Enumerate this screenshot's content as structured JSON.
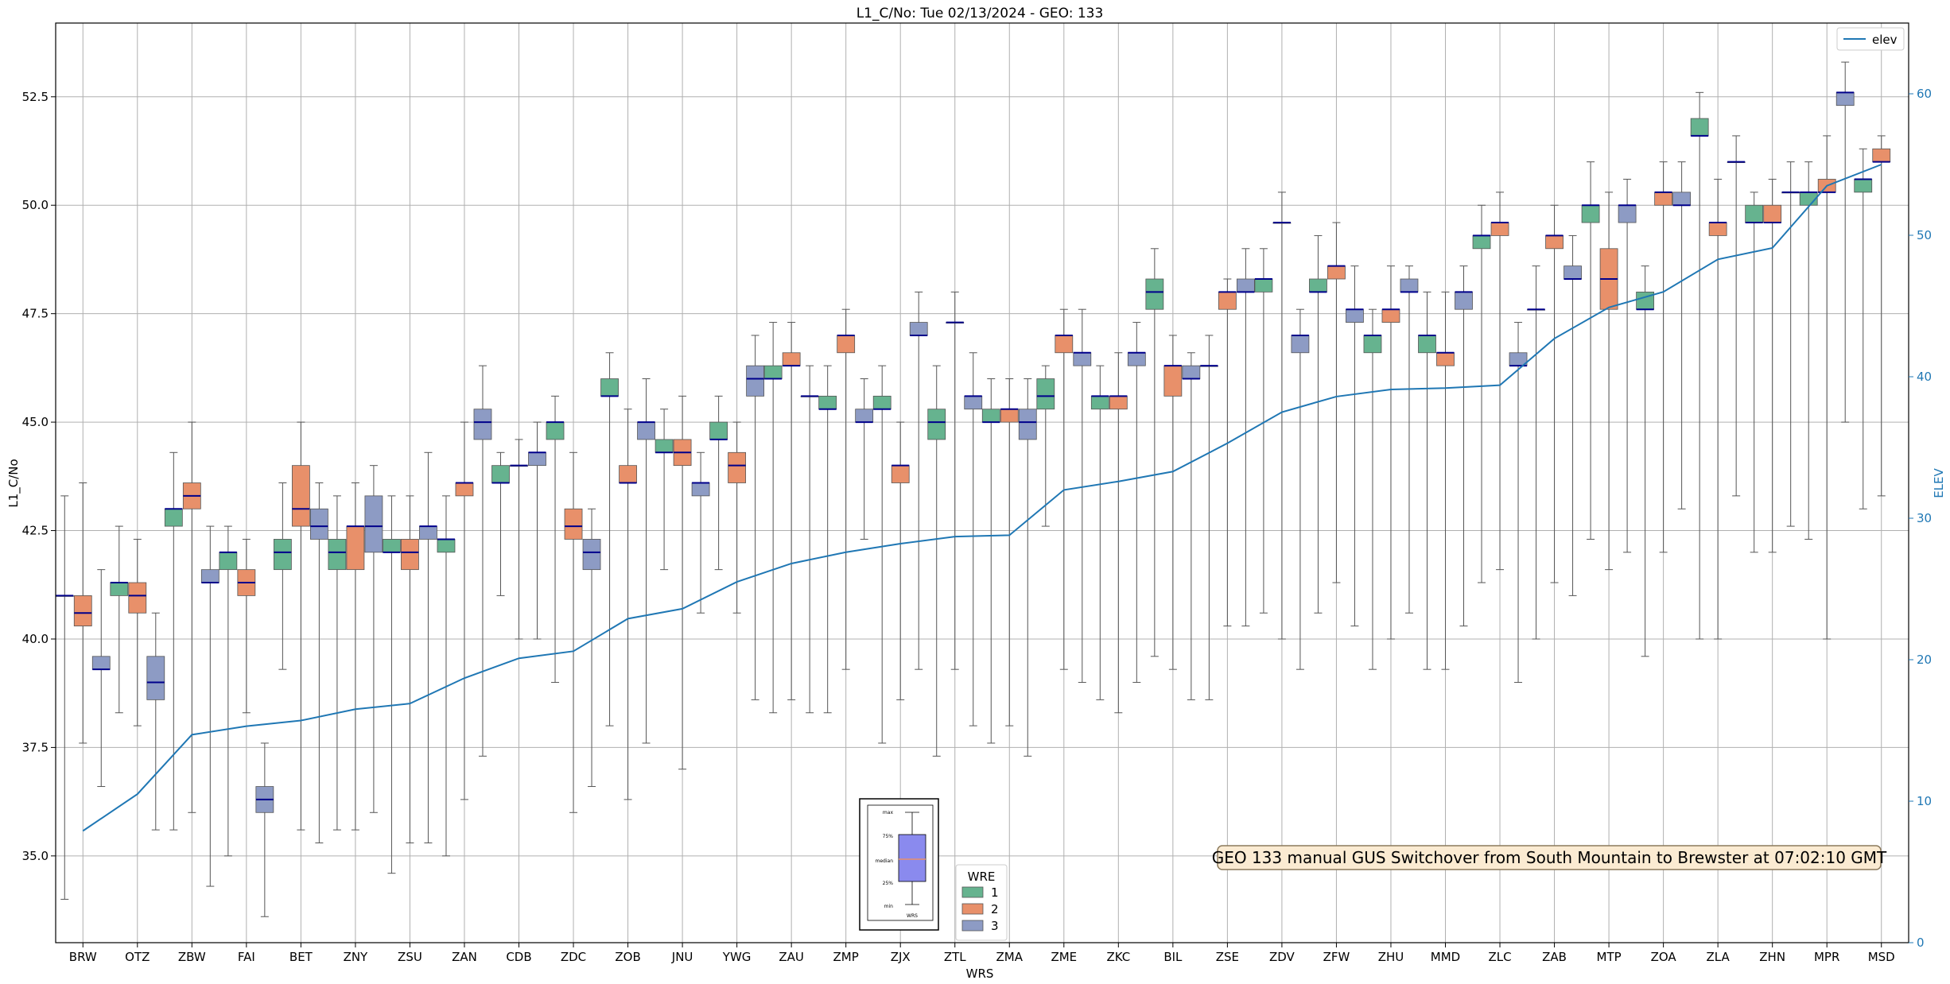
{
  "chart_data": {
    "type": "box",
    "title": "L1_C/No: Tue 02/13/2024 - GEO: 133",
    "xlabel": "WRS",
    "ylabel": "L1_C/No",
    "y2label": "ELEV",
    "ylim": [
      33.0,
      54.2
    ],
    "y2lim": [
      0,
      65
    ],
    "yticks": [
      "35.0",
      "37.5",
      "40.0",
      "42.5",
      "45.0",
      "47.5",
      "50.0",
      "52.5"
    ],
    "y2ticks": [
      "0",
      "10",
      "20",
      "30",
      "40",
      "50",
      "60"
    ],
    "grid": true,
    "categories": [
      "BRW",
      "OTZ",
      "ZBW",
      "FAI",
      "BET",
      "ZNY",
      "ZSU",
      "ZAN",
      "CDB",
      "ZDC",
      "ZOB",
      "JNU",
      "YWG",
      "ZAU",
      "ZMP",
      "ZJX",
      "ZTL",
      "ZMA",
      "ZME",
      "ZKC",
      "BIL",
      "ZSE",
      "ZDV",
      "ZFW",
      "ZHU",
      "MMD",
      "ZLC",
      "ZAB",
      "MTP",
      "ZOA",
      "ZLA",
      "ZHN",
      "MPR",
      "MSD"
    ],
    "wre_colors": {
      "1": "#66b38f",
      "2": "#e8906a",
      "3": "#8d9bc4"
    },
    "boxes": [
      {
        "station": "BRW",
        "wre": 1,
        "min": 34.0,
        "q1": 41.0,
        "median": 41.0,
        "q3": 41.0,
        "max": 43.3
      },
      {
        "station": "BRW",
        "wre": 2,
        "min": 37.6,
        "q1": 40.3,
        "median": 40.6,
        "q3": 41.0,
        "max": 43.6
      },
      {
        "station": "BRW",
        "wre": 3,
        "min": 36.6,
        "q1": 39.3,
        "median": 39.3,
        "q3": 39.6,
        "max": 41.6
      },
      {
        "station": "OTZ",
        "wre": 1,
        "min": 38.3,
        "q1": 41.0,
        "median": 41.3,
        "q3": 41.3,
        "max": 42.6
      },
      {
        "station": "OTZ",
        "wre": 2,
        "min": 38.0,
        "q1": 40.6,
        "median": 41.0,
        "q3": 41.3,
        "max": 42.3
      },
      {
        "station": "OTZ",
        "wre": 3,
        "min": 35.6,
        "q1": 38.6,
        "median": 39.0,
        "q3": 39.6,
        "max": 40.6
      },
      {
        "station": "ZBW",
        "wre": 1,
        "min": 35.6,
        "q1": 42.6,
        "median": 43.0,
        "q3": 43.0,
        "max": 44.3
      },
      {
        "station": "ZBW",
        "wre": 2,
        "min": 36.0,
        "q1": 43.0,
        "median": 43.3,
        "q3": 43.6,
        "max": 45.0
      },
      {
        "station": "ZBW",
        "wre": 3,
        "min": 34.3,
        "q1": 41.3,
        "median": 41.3,
        "q3": 41.6,
        "max": 42.6
      },
      {
        "station": "FAI",
        "wre": 1,
        "min": 35.0,
        "q1": 41.6,
        "median": 42.0,
        "q3": 42.0,
        "max": 42.6
      },
      {
        "station": "FAI",
        "wre": 2,
        "min": 38.3,
        "q1": 41.0,
        "median": 41.3,
        "q3": 41.6,
        "max": 42.3
      },
      {
        "station": "FAI",
        "wre": 3,
        "min": 33.6,
        "q1": 36.0,
        "median": 36.3,
        "q3": 36.6,
        "max": 37.6
      },
      {
        "station": "BET",
        "wre": 1,
        "min": 39.3,
        "q1": 41.6,
        "median": 42.0,
        "q3": 42.3,
        "max": 43.6
      },
      {
        "station": "BET",
        "wre": 2,
        "min": 35.6,
        "q1": 42.6,
        "median": 43.0,
        "q3": 44.0,
        "max": 45.0
      },
      {
        "station": "BET",
        "wre": 3,
        "min": 35.3,
        "q1": 42.3,
        "median": 42.6,
        "q3": 43.0,
        "max": 43.6
      },
      {
        "station": "ZNY",
        "wre": 1,
        "min": 35.6,
        "q1": 41.6,
        "median": 42.0,
        "q3": 42.3,
        "max": 43.3
      },
      {
        "station": "ZNY",
        "wre": 2,
        "min": 35.6,
        "q1": 41.6,
        "median": 42.6,
        "q3": 42.6,
        "max": 43.6
      },
      {
        "station": "ZNY",
        "wre": 3,
        "min": 36.0,
        "q1": 42.0,
        "median": 42.6,
        "q3": 43.3,
        "max": 44.0
      },
      {
        "station": "ZSU",
        "wre": 1,
        "min": 34.6,
        "q1": 42.0,
        "median": 42.0,
        "q3": 42.3,
        "max": 43.3
      },
      {
        "station": "ZSU",
        "wre": 2,
        "min": 35.3,
        "q1": 41.6,
        "median": 42.0,
        "q3": 42.3,
        "max": 43.3
      },
      {
        "station": "ZSU",
        "wre": 3,
        "min": 35.3,
        "q1": 42.3,
        "median": 42.6,
        "q3": 42.6,
        "max": 44.3
      },
      {
        "station": "ZAN",
        "wre": 1,
        "min": 35.0,
        "q1": 42.0,
        "median": 42.3,
        "q3": 42.3,
        "max": 43.3
      },
      {
        "station": "ZAN",
        "wre": 2,
        "min": 36.3,
        "q1": 43.3,
        "median": 43.6,
        "q3": 43.6,
        "max": 45.0
      },
      {
        "station": "ZAN",
        "wre": 3,
        "min": 37.3,
        "q1": 44.6,
        "median": 45.0,
        "q3": 45.3,
        "max": 46.3
      },
      {
        "station": "CDB",
        "wre": 1,
        "min": 41.0,
        "q1": 43.6,
        "median": 43.6,
        "q3": 44.0,
        "max": 44.3
      },
      {
        "station": "CDB",
        "wre": 2,
        "min": 40.0,
        "q1": 44.0,
        "median": 44.0,
        "q3": 44.0,
        "max": 44.6
      },
      {
        "station": "CDB",
        "wre": 3,
        "min": 40.0,
        "q1": 44.0,
        "median": 44.3,
        "q3": 44.3,
        "max": 45.0
      },
      {
        "station": "ZDC",
        "wre": 1,
        "min": 39.0,
        "q1": 44.6,
        "median": 45.0,
        "q3": 45.0,
        "max": 45.6
      },
      {
        "station": "ZDC",
        "wre": 2,
        "min": 36.0,
        "q1": 42.3,
        "median": 42.6,
        "q3": 43.0,
        "max": 44.3
      },
      {
        "station": "ZDC",
        "wre": 3,
        "min": 36.6,
        "q1": 41.6,
        "median": 42.0,
        "q3": 42.3,
        "max": 43.0
      },
      {
        "station": "ZOB",
        "wre": 1,
        "min": 38.0,
        "q1": 45.6,
        "median": 45.6,
        "q3": 46.0,
        "max": 46.6
      },
      {
        "station": "ZOB",
        "wre": 2,
        "min": 36.3,
        "q1": 43.6,
        "median": 43.6,
        "q3": 44.0,
        "max": 45.3
      },
      {
        "station": "ZOB",
        "wre": 3,
        "min": 37.6,
        "q1": 44.6,
        "median": 45.0,
        "q3": 45.0,
        "max": 46.0
      },
      {
        "station": "JNU",
        "wre": 1,
        "min": 41.6,
        "q1": 44.3,
        "median": 44.3,
        "q3": 44.6,
        "max": 45.3
      },
      {
        "station": "JNU",
        "wre": 2,
        "min": 37.0,
        "q1": 44.0,
        "median": 44.3,
        "q3": 44.6,
        "max": 45.6
      },
      {
        "station": "JNU",
        "wre": 3,
        "min": 40.6,
        "q1": 43.3,
        "median": 43.6,
        "q3": 43.6,
        "max": 44.3
      },
      {
        "station": "YWG",
        "wre": 1,
        "min": 41.6,
        "q1": 44.6,
        "median": 44.6,
        "q3": 45.0,
        "max": 45.6
      },
      {
        "station": "YWG",
        "wre": 2,
        "min": 40.6,
        "q1": 43.6,
        "median": 44.0,
        "q3": 44.3,
        "max": 45.0
      },
      {
        "station": "YWG",
        "wre": 3,
        "min": 38.6,
        "q1": 45.6,
        "median": 46.0,
        "q3": 46.3,
        "max": 47.0
      },
      {
        "station": "ZAU",
        "wre": 1,
        "min": 38.3,
        "q1": 46.0,
        "median": 46.0,
        "q3": 46.3,
        "max": 47.3
      },
      {
        "station": "ZAU",
        "wre": 2,
        "min": 38.6,
        "q1": 46.3,
        "median": 46.3,
        "q3": 46.6,
        "max": 47.3
      },
      {
        "station": "ZAU",
        "wre": 3,
        "min": 38.3,
        "q1": 45.6,
        "median": 45.6,
        "q3": 45.6,
        "max": 46.3
      },
      {
        "station": "ZMP",
        "wre": 1,
        "min": 38.3,
        "q1": 45.3,
        "median": 45.3,
        "q3": 45.6,
        "max": 46.3
      },
      {
        "station": "ZMP",
        "wre": 2,
        "min": 39.3,
        "q1": 46.6,
        "median": 47.0,
        "q3": 47.0,
        "max": 47.6
      },
      {
        "station": "ZMP",
        "wre": 3,
        "min": 42.3,
        "q1": 45.0,
        "median": 45.0,
        "q3": 45.3,
        "max": 46.0
      },
      {
        "station": "ZJX",
        "wre": 1,
        "min": 37.6,
        "q1": 45.3,
        "median": 45.3,
        "q3": 45.6,
        "max": 46.3
      },
      {
        "station": "ZJX",
        "wre": 2,
        "min": 38.6,
        "q1": 43.6,
        "median": 44.0,
        "q3": 44.0,
        "max": 45.0
      },
      {
        "station": "ZJX",
        "wre": 3,
        "min": 39.3,
        "q1": 47.0,
        "median": 47.0,
        "q3": 47.3,
        "max": 48.0
      },
      {
        "station": "ZTL",
        "wre": 1,
        "min": 37.3,
        "q1": 44.6,
        "median": 45.0,
        "q3": 45.3,
        "max": 46.3
      },
      {
        "station": "ZTL",
        "wre": 2,
        "min": 39.3,
        "q1": 47.3,
        "median": 47.3,
        "q3": 47.3,
        "max": 48.0
      },
      {
        "station": "ZTL",
        "wre": 3,
        "min": 38.0,
        "q1": 45.3,
        "median": 45.6,
        "q3": 45.6,
        "max": 46.6
      },
      {
        "station": "ZMA",
        "wre": 1,
        "min": 37.6,
        "q1": 45.0,
        "median": 45.0,
        "q3": 45.3,
        "max": 46.0
      },
      {
        "station": "ZMA",
        "wre": 2,
        "min": 38.0,
        "q1": 45.0,
        "median": 45.3,
        "q3": 45.3,
        "max": 46.0
      },
      {
        "station": "ZMA",
        "wre": 3,
        "min": 37.3,
        "q1": 44.6,
        "median": 45.0,
        "q3": 45.3,
        "max": 46.0
      },
      {
        "station": "ZME",
        "wre": 1,
        "min": 42.6,
        "q1": 45.3,
        "median": 45.6,
        "q3": 46.0,
        "max": 46.3
      },
      {
        "station": "ZME",
        "wre": 2,
        "min": 39.3,
        "q1": 46.6,
        "median": 47.0,
        "q3": 47.0,
        "max": 47.6
      },
      {
        "station": "ZME",
        "wre": 3,
        "min": 39.0,
        "q1": 46.3,
        "median": 46.6,
        "q3": 46.6,
        "max": 47.6
      },
      {
        "station": "ZKC",
        "wre": 1,
        "min": 38.6,
        "q1": 45.3,
        "median": 45.6,
        "q3": 45.6,
        "max": 46.3
      },
      {
        "station": "ZKC",
        "wre": 2,
        "min": 38.3,
        "q1": 45.3,
        "median": 45.6,
        "q3": 45.6,
        "max": 46.6
      },
      {
        "station": "ZKC",
        "wre": 3,
        "min": 39.0,
        "q1": 46.3,
        "median": 46.6,
        "q3": 46.6,
        "max": 47.3
      },
      {
        "station": "BIL",
        "wre": 1,
        "min": 39.6,
        "q1": 47.6,
        "median": 48.0,
        "q3": 48.3,
        "max": 49.0
      },
      {
        "station": "BIL",
        "wre": 2,
        "min": 39.3,
        "q1": 45.6,
        "median": 46.3,
        "q3": 46.3,
        "max": 47.0
      },
      {
        "station": "BIL",
        "wre": 3,
        "min": 38.6,
        "q1": 46.0,
        "median": 46.0,
        "q3": 46.3,
        "max": 46.6
      },
      {
        "station": "ZSE",
        "wre": 1,
        "min": 38.6,
        "q1": 46.3,
        "median": 46.3,
        "q3": 46.3,
        "max": 47.0
      },
      {
        "station": "ZSE",
        "wre": 2,
        "min": 40.3,
        "q1": 47.6,
        "median": 48.0,
        "q3": 48.0,
        "max": 48.3
      },
      {
        "station": "ZSE",
        "wre": 3,
        "min": 40.3,
        "q1": 48.0,
        "median": 48.0,
        "q3": 48.3,
        "max": 49.0
      },
      {
        "station": "ZDV",
        "wre": 1,
        "min": 40.6,
        "q1": 48.0,
        "median": 48.3,
        "q3": 48.3,
        "max": 49.0
      },
      {
        "station": "ZDV",
        "wre": 2,
        "min": 40.0,
        "q1": 49.6,
        "median": 49.6,
        "q3": 49.6,
        "max": 50.3
      },
      {
        "station": "ZDV",
        "wre": 3,
        "min": 39.3,
        "q1": 46.6,
        "median": 47.0,
        "q3": 47.0,
        "max": 47.6
      },
      {
        "station": "ZFW",
        "wre": 1,
        "min": 40.6,
        "q1": 48.0,
        "median": 48.0,
        "q3": 48.3,
        "max": 49.3
      },
      {
        "station": "ZFW",
        "wre": 2,
        "min": 41.3,
        "q1": 48.3,
        "median": 48.6,
        "q3": 48.6,
        "max": 49.6
      },
      {
        "station": "ZFW",
        "wre": 3,
        "min": 40.3,
        "q1": 47.3,
        "median": 47.6,
        "q3": 47.6,
        "max": 48.6
      },
      {
        "station": "ZHU",
        "wre": 1,
        "min": 39.3,
        "q1": 46.6,
        "median": 47.0,
        "q3": 47.0,
        "max": 47.6
      },
      {
        "station": "ZHU",
        "wre": 2,
        "min": 40.0,
        "q1": 47.3,
        "median": 47.6,
        "q3": 47.6,
        "max": 48.6
      },
      {
        "station": "ZHU",
        "wre": 3,
        "min": 40.6,
        "q1": 48.0,
        "median": 48.0,
        "q3": 48.3,
        "max": 48.6
      },
      {
        "station": "MMD",
        "wre": 1,
        "min": 39.3,
        "q1": 46.6,
        "median": 47.0,
        "q3": 47.0,
        "max": 48.0
      },
      {
        "station": "MMD",
        "wre": 2,
        "min": 39.3,
        "q1": 46.3,
        "median": 46.6,
        "q3": 46.6,
        "max": 48.0
      },
      {
        "station": "MMD",
        "wre": 3,
        "min": 40.3,
        "q1": 47.6,
        "median": 48.0,
        "q3": 48.0,
        "max": 48.6
      },
      {
        "station": "ZLC",
        "wre": 1,
        "min": 41.3,
        "q1": 49.0,
        "median": 49.3,
        "q3": 49.3,
        "max": 50.0
      },
      {
        "station": "ZLC",
        "wre": 2,
        "min": 41.6,
        "q1": 49.3,
        "median": 49.6,
        "q3": 49.6,
        "max": 50.3
      },
      {
        "station": "ZLC",
        "wre": 3,
        "min": 39.0,
        "q1": 46.3,
        "median": 46.3,
        "q3": 46.6,
        "max": 47.3
      },
      {
        "station": "ZAB",
        "wre": 1,
        "min": 40.0,
        "q1": 47.6,
        "median": 47.6,
        "q3": 47.6,
        "max": 48.6
      },
      {
        "station": "ZAB",
        "wre": 2,
        "min": 41.3,
        "q1": 49.0,
        "median": 49.3,
        "q3": 49.3,
        "max": 50.0
      },
      {
        "station": "ZAB",
        "wre": 3,
        "min": 41.0,
        "q1": 48.3,
        "median": 48.3,
        "q3": 48.6,
        "max": 49.3
      },
      {
        "station": "MTP",
        "wre": 1,
        "min": 42.3,
        "q1": 49.6,
        "median": 50.0,
        "q3": 50.0,
        "max": 51.0
      },
      {
        "station": "MTP",
        "wre": 2,
        "min": 41.6,
        "q1": 47.6,
        "median": 48.3,
        "q3": 49.0,
        "max": 50.3
      },
      {
        "station": "MTP",
        "wre": 3,
        "min": 42.0,
        "q1": 49.6,
        "median": 50.0,
        "q3": 50.0,
        "max": 50.6
      },
      {
        "station": "ZOA",
        "wre": 1,
        "min": 39.6,
        "q1": 47.6,
        "median": 47.6,
        "q3": 48.0,
        "max": 48.6
      },
      {
        "station": "ZOA",
        "wre": 2,
        "min": 42.0,
        "q1": 50.0,
        "median": 50.3,
        "q3": 50.3,
        "max": 51.0
      },
      {
        "station": "ZOA",
        "wre": 3,
        "min": 43.0,
        "q1": 50.0,
        "median": 50.0,
        "q3": 50.3,
        "max": 51.0
      },
      {
        "station": "ZLA",
        "wre": 1,
        "min": 40.0,
        "q1": 51.6,
        "median": 51.6,
        "q3": 52.0,
        "max": 52.6
      },
      {
        "station": "ZLA",
        "wre": 2,
        "min": 40.0,
        "q1": 49.3,
        "median": 49.6,
        "q3": 49.6,
        "max": 50.6
      },
      {
        "station": "ZLA",
        "wre": 3,
        "min": 43.3,
        "q1": 51.0,
        "median": 51.0,
        "q3": 51.0,
        "max": 51.6
      },
      {
        "station": "ZHN",
        "wre": 1,
        "min": 42.0,
        "q1": 49.6,
        "median": 49.6,
        "q3": 50.0,
        "max": 50.3
      },
      {
        "station": "ZHN",
        "wre": 2,
        "min": 42.0,
        "q1": 49.6,
        "median": 49.6,
        "q3": 50.0,
        "max": 50.6
      },
      {
        "station": "ZHN",
        "wre": 3,
        "min": 42.6,
        "q1": 50.3,
        "median": 50.3,
        "q3": 50.3,
        "max": 51.0
      },
      {
        "station": "MPR",
        "wre": 1,
        "min": 42.3,
        "q1": 50.0,
        "median": 50.3,
        "q3": 50.3,
        "max": 51.0
      },
      {
        "station": "MPR",
        "wre": 2,
        "min": 40.0,
        "q1": 50.3,
        "median": 50.3,
        "q3": 50.6,
        "max": 51.6
      },
      {
        "station": "MPR",
        "wre": 3,
        "min": 45.0,
        "q1": 52.3,
        "median": 52.6,
        "q3": 52.6,
        "max": 53.3
      },
      {
        "station": "MSD",
        "wre": 1,
        "min": 43.0,
        "q1": 50.3,
        "median": 50.6,
        "q3": 50.6,
        "max": 51.3
      },
      {
        "station": "MSD",
        "wre": 2,
        "min": 43.3,
        "q1": 51.0,
        "median": 51.0,
        "q3": 51.3,
        "max": 51.6
      }
    ],
    "elev_series": {
      "name": "elev",
      "color": "#1f77b4",
      "values": [
        7.9,
        10.5,
        14.7,
        15.3,
        15.7,
        16.5,
        16.9,
        18.7,
        20.1,
        20.6,
        22.9,
        23.6,
        25.5,
        26.8,
        27.6,
        28.2,
        28.7,
        28.8,
        32.0,
        32.6,
        33.3,
        35.3,
        37.5,
        38.6,
        39.1,
        39.2,
        39.4,
        42.7,
        44.9,
        46.0,
        48.3,
        49.1,
        53.5,
        55.0
      ]
    },
    "legend_elev": {
      "label": "elev",
      "placement": "upper-right"
    },
    "legend_wre": {
      "title": "WRE",
      "items": [
        "1",
        "2",
        "3"
      ]
    },
    "inset_labels": [
      "max",
      "75%",
      "median",
      "25%",
      "min"
    ],
    "inset_xlabel": "WRS",
    "annotation": "GEO 133 manual GUS Switchover from South Mountain to Brewster at 07:02:10 GMT"
  }
}
